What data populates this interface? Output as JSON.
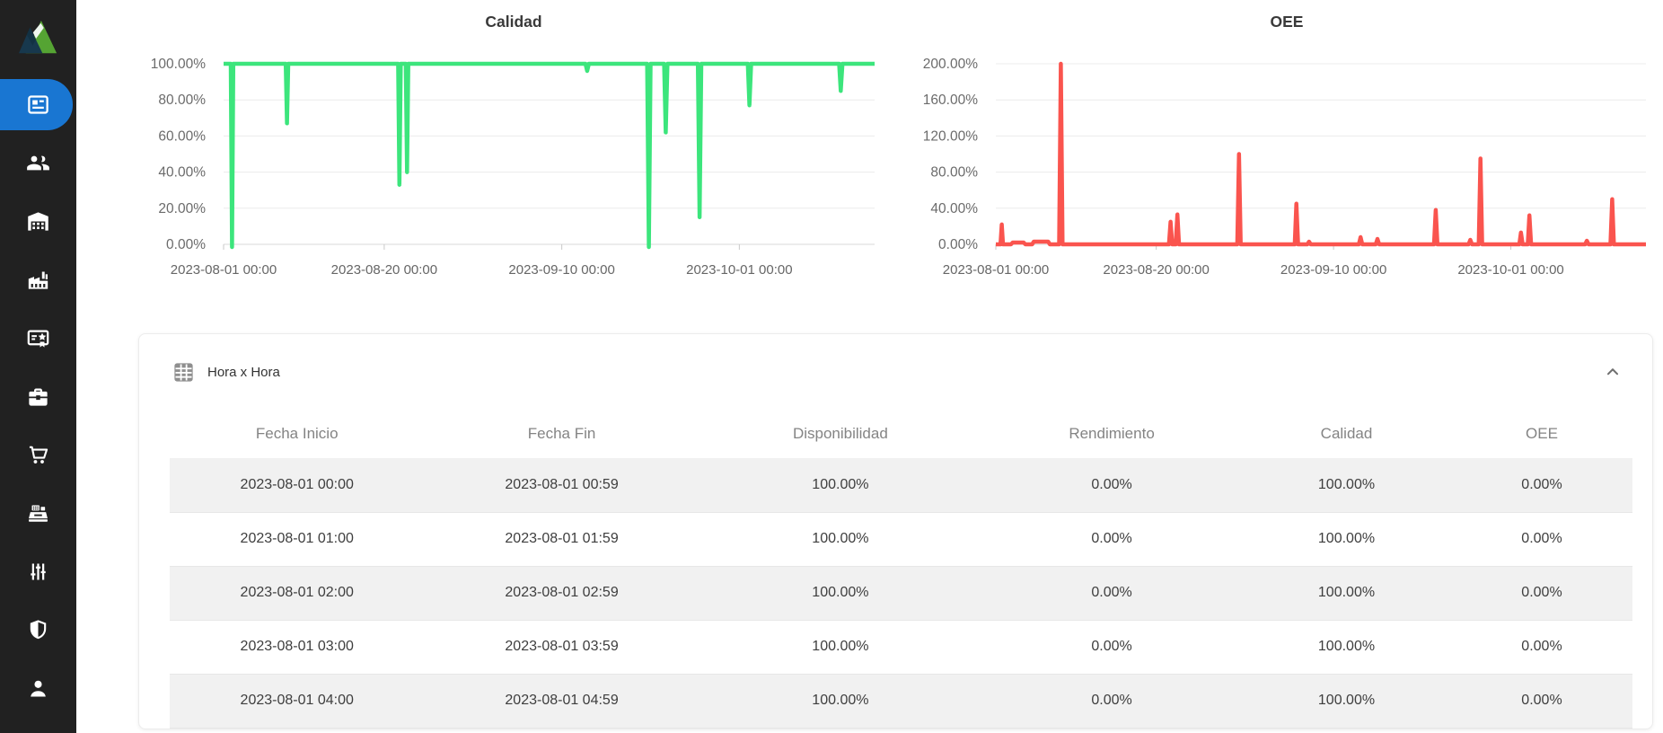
{
  "sidebar": {
    "colors": {
      "background": "#212121",
      "active_pill": "#1976d2",
      "icon": "#ffffff"
    },
    "items": [
      {
        "name": "dashboard",
        "active": true
      },
      {
        "name": "users",
        "active": false
      },
      {
        "name": "warehouse",
        "active": false
      },
      {
        "name": "factory",
        "active": false
      },
      {
        "name": "certificate",
        "active": false
      },
      {
        "name": "briefcase",
        "active": false
      },
      {
        "name": "shopping-cart",
        "active": false
      },
      {
        "name": "cash-register",
        "active": false
      },
      {
        "name": "tune",
        "active": false
      },
      {
        "name": "shield",
        "active": false
      },
      {
        "name": "user",
        "active": false
      }
    ]
  },
  "chart_data": [
    {
      "type": "line",
      "title": "Calidad",
      "color": "#3ce57c",
      "ylim": [
        0,
        100
      ],
      "y_ticks": [
        {
          "value": 100,
          "label": "100.00%"
        },
        {
          "value": 80,
          "label": "80.00%"
        },
        {
          "value": 60,
          "label": "60.00%"
        },
        {
          "value": 40,
          "label": "40.00%"
        },
        {
          "value": 20,
          "label": "20.00%"
        },
        {
          "value": 0,
          "label": "0.00%"
        }
      ],
      "x_range_days": [
        0,
        77
      ],
      "x_ticks": [
        {
          "day": 0,
          "label": "2023-08-01 00:00"
        },
        {
          "day": 19,
          "label": "2023-08-20 00:00"
        },
        {
          "day": 40,
          "label": "2023-09-10 00:00"
        },
        {
          "day": 61,
          "label": "2023-10-01 00:00"
        }
      ],
      "grid": true,
      "legend": "none",
      "baseline_value": 100,
      "points": [
        [
          0,
          100
        ],
        [
          0.85,
          100
        ],
        [
          1.0,
          -1.5
        ],
        [
          1.15,
          100
        ],
        [
          7.35,
          100
        ],
        [
          7.5,
          67
        ],
        [
          7.65,
          100
        ],
        [
          20.65,
          100
        ],
        [
          20.8,
          33
        ],
        [
          20.95,
          100
        ],
        [
          21.55,
          100
        ],
        [
          21.7,
          40
        ],
        [
          21.85,
          100
        ],
        [
          42.8,
          100
        ],
        [
          43.0,
          96
        ],
        [
          43.2,
          100
        ],
        [
          50.1,
          100
        ],
        [
          50.3,
          -1.5
        ],
        [
          50.5,
          100
        ],
        [
          52.1,
          100
        ],
        [
          52.3,
          62
        ],
        [
          52.5,
          100
        ],
        [
          56.1,
          100
        ],
        [
          56.3,
          15
        ],
        [
          56.5,
          100
        ],
        [
          62.0,
          100
        ],
        [
          62.2,
          77
        ],
        [
          62.4,
          100
        ],
        [
          72.8,
          100
        ],
        [
          73.0,
          85
        ],
        [
          73.2,
          100
        ],
        [
          77,
          100
        ]
      ]
    },
    {
      "type": "line",
      "title": "OEE",
      "color": "#fa544e",
      "ylim": [
        0,
        200
      ],
      "y_ticks": [
        {
          "value": 200,
          "label": "200.00%"
        },
        {
          "value": 160,
          "label": "160.00%"
        },
        {
          "value": 120,
          "label": "120.00%"
        },
        {
          "value": 80,
          "label": "80.00%"
        },
        {
          "value": 40,
          "label": "40.00%"
        },
        {
          "value": 0,
          "label": "0.00%"
        }
      ],
      "x_range_days": [
        0,
        77
      ],
      "x_ticks": [
        {
          "day": 0,
          "label": "2023-08-01 00:00"
        },
        {
          "day": 19,
          "label": "2023-08-20 00:00"
        },
        {
          "day": 40,
          "label": "2023-09-10 00:00"
        },
        {
          "day": 61,
          "label": "2023-10-01 00:00"
        }
      ],
      "grid": true,
      "legend": "none",
      "baseline_value": 0,
      "points": [
        [
          0,
          0
        ],
        [
          0.55,
          0
        ],
        [
          0.7,
          22
        ],
        [
          0.85,
          0
        ],
        [
          1.8,
          0
        ],
        [
          2.0,
          2
        ],
        [
          3.3,
          2
        ],
        [
          3.5,
          0
        ],
        [
          4.3,
          0
        ],
        [
          4.5,
          3
        ],
        [
          6.2,
          3
        ],
        [
          6.4,
          0
        ],
        [
          7.5,
          0
        ],
        [
          7.7,
          200
        ],
        [
          7.9,
          0
        ],
        [
          20.5,
          0
        ],
        [
          20.7,
          25
        ],
        [
          20.9,
          0
        ],
        [
          21.3,
          0
        ],
        [
          21.5,
          33
        ],
        [
          21.7,
          0
        ],
        [
          28.6,
          0
        ],
        [
          28.8,
          100
        ],
        [
          29.0,
          0
        ],
        [
          35.4,
          0
        ],
        [
          35.6,
          45
        ],
        [
          35.8,
          0
        ],
        [
          36.9,
          0
        ],
        [
          37.1,
          3
        ],
        [
          37.3,
          0
        ],
        [
          43.0,
          0
        ],
        [
          43.2,
          8
        ],
        [
          43.4,
          0
        ],
        [
          45.0,
          0
        ],
        [
          45.2,
          6
        ],
        [
          45.4,
          0
        ],
        [
          51.9,
          0
        ],
        [
          52.1,
          38
        ],
        [
          52.3,
          0
        ],
        [
          56.0,
          0
        ],
        [
          56.2,
          5
        ],
        [
          56.4,
          0
        ],
        [
          57.2,
          0
        ],
        [
          57.4,
          95
        ],
        [
          57.6,
          0
        ],
        [
          62.0,
          0
        ],
        [
          62.2,
          13
        ],
        [
          62.4,
          0
        ],
        [
          63.0,
          0
        ],
        [
          63.2,
          32
        ],
        [
          63.4,
          0
        ],
        [
          69.8,
          0
        ],
        [
          70.0,
          4
        ],
        [
          70.2,
          0
        ],
        [
          72.8,
          0
        ],
        [
          73.0,
          50
        ],
        [
          73.2,
          0
        ],
        [
          77,
          0
        ]
      ]
    }
  ],
  "panel": {
    "title": "Hora x Hora",
    "collapse_icon": "chevron-up",
    "table_icon": "grid-table"
  },
  "table": {
    "columns": [
      "Fecha Inicio",
      "Fecha Fin",
      "Disponibilidad",
      "Rendimiento",
      "Calidad",
      "OEE"
    ],
    "rows": [
      [
        "2023-08-01 00:00",
        "2023-08-01 00:59",
        "100.00%",
        "0.00%",
        "100.00%",
        "0.00%"
      ],
      [
        "2023-08-01 01:00",
        "2023-08-01 01:59",
        "100.00%",
        "0.00%",
        "100.00%",
        "0.00%"
      ],
      [
        "2023-08-01 02:00",
        "2023-08-01 02:59",
        "100.00%",
        "0.00%",
        "100.00%",
        "0.00%"
      ],
      [
        "2023-08-01 03:00",
        "2023-08-01 03:59",
        "100.00%",
        "0.00%",
        "100.00%",
        "0.00%"
      ],
      [
        "2023-08-01 04:00",
        "2023-08-01 04:59",
        "100.00%",
        "0.00%",
        "100.00%",
        "0.00%"
      ]
    ]
  }
}
